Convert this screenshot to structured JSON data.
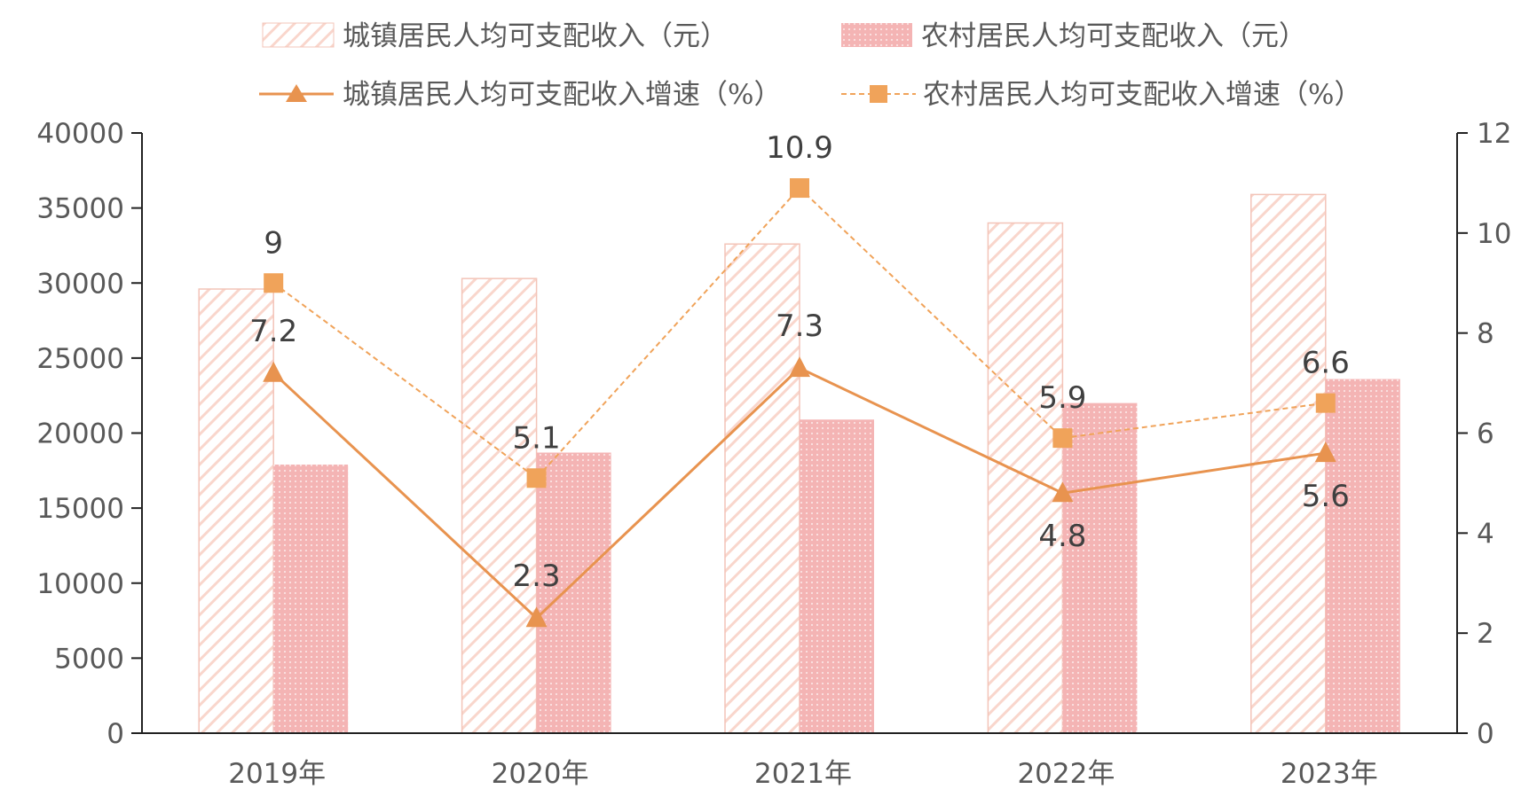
{
  "chart_data": {
    "type": "bar",
    "categories": [
      "2019年",
      "2020年",
      "2021年",
      "2022年",
      "2023年"
    ],
    "series": [
      {
        "name": "城镇居民人均可支配收入（元）",
        "kind": "bar",
        "axis": "left",
        "values": [
          29600,
          30300,
          32600,
          34000,
          35900
        ]
      },
      {
        "name": "农村居民人均可支配收入（元）",
        "kind": "bar",
        "axis": "left",
        "values": [
          17900,
          18700,
          20900,
          22000,
          23600
        ]
      },
      {
        "name": "城镇居民人均可支配收入增速（%）",
        "kind": "line",
        "axis": "right",
        "marker": "triangle",
        "values": [
          7.2,
          2.3,
          7.3,
          4.8,
          5.6
        ]
      },
      {
        "name": "农村居民人均可支配收入增速（%）",
        "kind": "line",
        "axis": "right",
        "marker": "square",
        "dashed": true,
        "values": [
          9,
          5.1,
          10.9,
          5.9,
          6.6
        ]
      }
    ],
    "y_left": {
      "min": 0,
      "max": 40000,
      "step": 5000
    },
    "y_right": {
      "min": 0,
      "max": 12,
      "step": 2
    },
    "grid": false,
    "legend": "top",
    "colors": {
      "urban_bar_hatch": "#f7c7bd",
      "rural_bar": "#f4b6b6",
      "urban_line": "#e8934f",
      "rural_line": "#f0a35a",
      "axis": "#222222"
    }
  }
}
